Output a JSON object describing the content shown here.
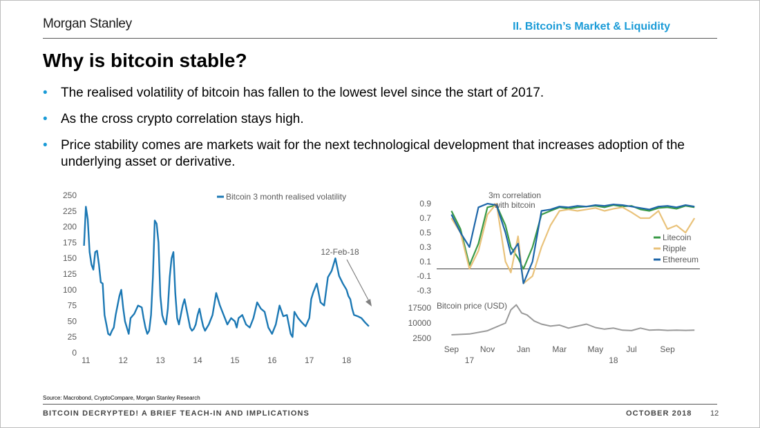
{
  "header": {
    "brand": "Morgan Stanley",
    "section": "II. Bitcoin’s Market & Liquidity"
  },
  "title": "Why is bitcoin stable?",
  "bullets": [
    "The realised volatility of bitcoin has fallen to the lowest level since the start of 2017.",
    "As the cross crypto correlation stays high.",
    "Price stability comes are markets wait for the next technological development that increases adoption of the underlying asset or derivative."
  ],
  "source": "Source: Macrobond, CryptoCompare, Morgan Stanley Research",
  "footer": {
    "left": "BITCOIN DECRYPTED! A BRIEF TEACH-IN AND IMPLICATIONS",
    "date": "OCTOBER 2018",
    "page": "12"
  },
  "colors": {
    "accent": "#1a9bd7",
    "bitcoin_vol": "#1b78b4",
    "litecoin": "#3a9a47",
    "ripple": "#e9c27a",
    "ethereum": "#1c65a8",
    "btc_price": "#999999"
  },
  "chart_data": [
    {
      "type": "line",
      "title": "",
      "xlabel": "",
      "ylabel": "",
      "ylim": [
        0,
        250
      ],
      "yticks": [
        "0",
        "25",
        "50",
        "75",
        "100",
        "125",
        "150",
        "175",
        "200",
        "225",
        "250"
      ],
      "xticks": [
        "11",
        "12",
        "13",
        "14",
        "15",
        "16",
        "17",
        "18"
      ],
      "xticks_years": [
        2011,
        2012,
        2013,
        2014,
        2015,
        2016,
        2017,
        2018
      ],
      "xlim": [
        2010.92,
        2018.75
      ],
      "legend_position": "top",
      "annotation": "12-Feb-18",
      "series": [
        {
          "name": "Bitcoin 3 month realised volatility",
          "x": [
            2010.95,
            2011.0,
            2011.05,
            2011.1,
            2011.15,
            2011.2,
            2011.25,
            2011.3,
            2011.35,
            2011.4,
            2011.45,
            2011.5,
            2011.55,
            2011.6,
            2011.65,
            2011.7,
            2011.75,
            2011.8,
            2011.85,
            2011.9,
            2011.95,
            2012.0,
            2012.05,
            2012.1,
            2012.15,
            2012.2,
            2012.3,
            2012.4,
            2012.5,
            2012.55,
            2012.6,
            2012.65,
            2012.7,
            2012.75,
            2012.8,
            2012.85,
            2012.9,
            2012.95,
            2013.0,
            2013.05,
            2013.1,
            2013.15,
            2013.2,
            2013.25,
            2013.3,
            2013.35,
            2013.4,
            2013.45,
            2013.5,
            2013.55,
            2013.6,
            2013.65,
            2013.7,
            2013.75,
            2013.8,
            2013.85,
            2013.9,
            2013.95,
            2014.0,
            2014.05,
            2014.1,
            2014.15,
            2014.2,
            2014.3,
            2014.4,
            2014.5,
            2014.6,
            2014.7,
            2014.8,
            2014.9,
            2015.0,
            2015.05,
            2015.1,
            2015.2,
            2015.3,
            2015.4,
            2015.5,
            2015.6,
            2015.7,
            2015.8,
            2015.9,
            2016.0,
            2016.1,
            2016.2,
            2016.3,
            2016.4,
            2016.5,
            2016.55,
            2016.6,
            2016.7,
            2016.8,
            2016.9,
            2017.0,
            2017.05,
            2017.1,
            2017.2,
            2017.3,
            2017.4,
            2017.5,
            2017.6,
            2017.7,
            2017.8,
            2017.9,
            2018.0,
            2018.05,
            2018.1,
            2018.15,
            2018.2,
            2018.3,
            2018.4,
            2018.5,
            2018.6
          ],
          "values": [
            170,
            232,
            212,
            160,
            140,
            132,
            160,
            162,
            140,
            112,
            110,
            60,
            45,
            30,
            28,
            35,
            40,
            60,
            75,
            90,
            100,
            72,
            50,
            40,
            30,
            55,
            62,
            75,
            72,
            55,
            40,
            30,
            35,
            60,
            120,
            210,
            205,
            175,
            90,
            60,
            50,
            45,
            70,
            120,
            150,
            160,
            95,
            55,
            45,
            60,
            75,
            85,
            70,
            55,
            40,
            35,
            38,
            45,
            60,
            70,
            55,
            42,
            35,
            45,
            60,
            95,
            75,
            60,
            45,
            55,
            50,
            40,
            55,
            60,
            45,
            40,
            55,
            80,
            70,
            65,
            40,
            30,
            45,
            75,
            58,
            60,
            30,
            25,
            65,
            55,
            48,
            42,
            55,
            85,
            95,
            110,
            80,
            75,
            120,
            130,
            150,
            122,
            110,
            100,
            90,
            85,
            70,
            60,
            58,
            55,
            48,
            42
          ]
        }
      ]
    },
    {
      "type": "line",
      "title": "3m correlation with bitcoin",
      "ylim": [
        -0.3,
        0.9
      ],
      "yticks": [
        "0.9",
        "0.7",
        "0.5",
        "0.3",
        "0.1",
        "-0.1",
        "-0.3"
      ],
      "xticks": [
        "Sep",
        "Nov",
        "Jan",
        "Mar",
        "May",
        "Jul",
        "Sep"
      ],
      "xticks_months": [
        0,
        2,
        4,
        6,
        8,
        10,
        12
      ],
      "xlim": [
        -0.4,
        13.8
      ],
      "year_labels": [
        "17",
        "18"
      ],
      "legend_position": "right",
      "series": [
        {
          "name": "Litecoin",
          "x": [
            0,
            0.5,
            1,
            1.5,
            2,
            2.5,
            3,
            3.3,
            3.7,
            4,
            4.5,
            5,
            5.5,
            6,
            6.5,
            7,
            7.5,
            8,
            8.5,
            9,
            9.5,
            10,
            10.5,
            11,
            11.5,
            12,
            12.5,
            13,
            13.5
          ],
          "values": [
            0.8,
            0.55,
            0.05,
            0.35,
            0.85,
            0.88,
            0.6,
            0.3,
            0.15,
            0.0,
            0.3,
            0.75,
            0.8,
            0.85,
            0.83,
            0.85,
            0.86,
            0.87,
            0.85,
            0.88,
            0.86,
            0.87,
            0.82,
            0.8,
            0.84,
            0.85,
            0.83,
            0.87,
            0.85
          ]
        },
        {
          "name": "Ripple",
          "x": [
            0,
            0.5,
            1,
            1.5,
            2,
            2.5,
            3,
            3.3,
            3.7,
            4,
            4.5,
            5,
            5.5,
            6,
            6.5,
            7,
            7.5,
            8,
            8.5,
            9,
            9.5,
            10,
            10.5,
            11,
            11.5,
            12,
            12.5,
            13,
            13.5
          ],
          "values": [
            0.7,
            0.5,
            0.0,
            0.25,
            0.75,
            0.9,
            0.1,
            -0.05,
            0.45,
            -0.2,
            -0.1,
            0.3,
            0.6,
            0.8,
            0.82,
            0.8,
            0.82,
            0.84,
            0.8,
            0.83,
            0.85,
            0.78,
            0.7,
            0.7,
            0.8,
            0.55,
            0.6,
            0.5,
            0.7
          ]
        },
        {
          "name": "Ethereum",
          "x": [
            0,
            0.5,
            1,
            1.5,
            2,
            2.5,
            3,
            3.3,
            3.7,
            4,
            4.5,
            5,
            5.5,
            6,
            6.5,
            7,
            7.5,
            8,
            8.5,
            9,
            9.5,
            10,
            10.5,
            11,
            11.5,
            12,
            12.5,
            13,
            13.5
          ],
          "values": [
            0.75,
            0.5,
            0.3,
            0.85,
            0.9,
            0.88,
            0.5,
            0.2,
            0.35,
            -0.2,
            0.1,
            0.8,
            0.82,
            0.86,
            0.85,
            0.87,
            0.86,
            0.88,
            0.87,
            0.89,
            0.88,
            0.86,
            0.84,
            0.82,
            0.86,
            0.87,
            0.85,
            0.88,
            0.86
          ]
        }
      ]
    },
    {
      "type": "line",
      "title": "Bitcoin price (USD)",
      "ylim": [
        0,
        20000
      ],
      "yticks": [
        "17500",
        "10000",
        "2500"
      ],
      "xlim": [
        -0.4,
        13.8
      ],
      "series": [
        {
          "name": "Bitcoin price (USD)",
          "x": [
            0,
            1,
            2,
            3,
            3.3,
            3.6,
            3.9,
            4.2,
            4.6,
            5,
            5.5,
            6,
            6.5,
            7,
            7.5,
            8,
            8.5,
            9,
            9.5,
            10,
            10.5,
            11,
            11.5,
            12,
            12.5,
            13,
            13.5
          ],
          "values": [
            4200,
            4600,
            6200,
            10000,
            16500,
            19000,
            15000,
            14000,
            11000,
            9500,
            8500,
            9000,
            7500,
            8500,
            9500,
            7800,
            7000,
            7500,
            6500,
            6300,
            7500,
            6500,
            6700,
            6400,
            6500,
            6400,
            6500
          ]
        }
      ]
    }
  ]
}
